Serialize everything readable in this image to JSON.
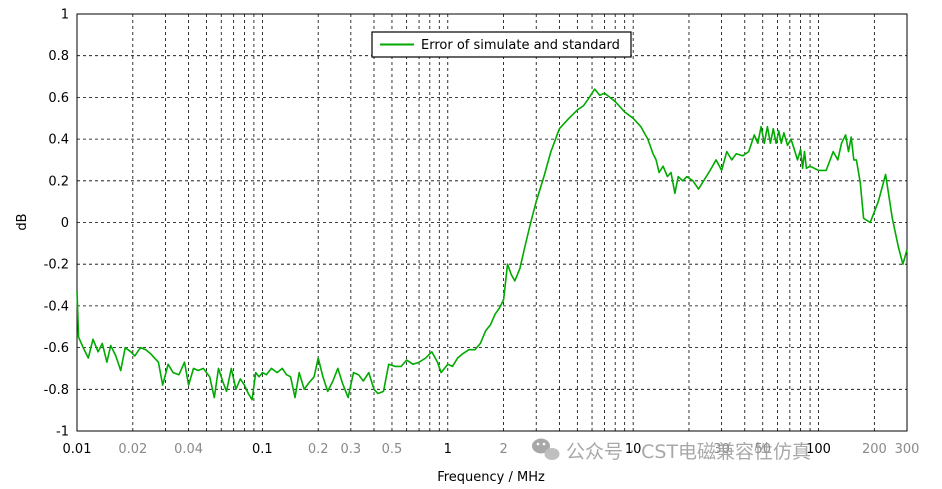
{
  "chart_data": {
    "type": "line",
    "xlabel": "Frequency / MHz",
    "ylabel": "dB",
    "x_scale": "log",
    "xlim": [
      0.01,
      300
    ],
    "ylim": [
      -1,
      1
    ],
    "grid": true,
    "legend_position": "top-center",
    "y_ticks": [
      "1",
      "0.8",
      "0.6",
      "0.4",
      "0.2",
      "0",
      "-0.2",
      "-0.4",
      "-0.6",
      "-0.8",
      "-1"
    ],
    "x_ticks": [
      {
        "value": 0.01,
        "label": "0.01",
        "major": true
      },
      {
        "value": 0.02,
        "label": "0.02",
        "major": false
      },
      {
        "value": 0.04,
        "label": "0.04",
        "major": false
      },
      {
        "value": 0.1,
        "label": "0.1",
        "major": true
      },
      {
        "value": 0.2,
        "label": "0.2",
        "major": false
      },
      {
        "value": 0.3,
        "label": "0.3",
        "major": false
      },
      {
        "value": 0.5,
        "label": "0.5",
        "major": false
      },
      {
        "value": 1,
        "label": "1",
        "major": true
      },
      {
        "value": 2,
        "label": "2",
        "major": false
      },
      {
        "value": 10,
        "label": "10",
        "major": true
      },
      {
        "value": 30,
        "label": "30",
        "major": false
      },
      {
        "value": 50,
        "label": "50",
        "major": false
      },
      {
        "value": 100,
        "label": "100",
        "major": true
      },
      {
        "value": 200,
        "label": "200",
        "major": false
      },
      {
        "value": 300,
        "label": "300",
        "major": false
      }
    ],
    "series": [
      {
        "name": "Error of simulate and standard",
        "color": "#00aa00",
        "points": [
          [
            0.01,
            -0.33
          ],
          [
            0.0102,
            -0.55
          ],
          [
            0.0108,
            -0.6
          ],
          [
            0.0115,
            -0.65
          ],
          [
            0.0122,
            -0.56
          ],
          [
            0.013,
            -0.62
          ],
          [
            0.0137,
            -0.58
          ],
          [
            0.0145,
            -0.67
          ],
          [
            0.0152,
            -0.59
          ],
          [
            0.0162,
            -0.64
          ],
          [
            0.0172,
            -0.71
          ],
          [
            0.0182,
            -0.6
          ],
          [
            0.0195,
            -0.62
          ],
          [
            0.0205,
            -0.64
          ],
          [
            0.022,
            -0.6
          ],
          [
            0.0235,
            -0.61
          ],
          [
            0.025,
            -0.63
          ],
          [
            0.0275,
            -0.67
          ],
          [
            0.029,
            -0.78
          ],
          [
            0.031,
            -0.68
          ],
          [
            0.033,
            -0.72
          ],
          [
            0.0355,
            -0.73
          ],
          [
            0.038,
            -0.67
          ],
          [
            0.04,
            -0.78
          ],
          [
            0.0425,
            -0.7
          ],
          [
            0.045,
            -0.71
          ],
          [
            0.048,
            -0.7
          ],
          [
            0.052,
            -0.74
          ],
          [
            0.055,
            -0.84
          ],
          [
            0.058,
            -0.7
          ],
          [
            0.061,
            -0.76
          ],
          [
            0.064,
            -0.81
          ],
          [
            0.068,
            -0.7
          ],
          [
            0.072,
            -0.8
          ],
          [
            0.076,
            -0.75
          ],
          [
            0.08,
            -0.78
          ],
          [
            0.084,
            -0.82
          ],
          [
            0.088,
            -0.85
          ],
          [
            0.092,
            -0.72
          ],
          [
            0.096,
            -0.74
          ],
          [
            0.1,
            -0.72
          ],
          [
            0.105,
            -0.73
          ],
          [
            0.112,
            -0.7
          ],
          [
            0.12,
            -0.72
          ],
          [
            0.128,
            -0.7
          ],
          [
            0.135,
            -0.73
          ],
          [
            0.142,
            -0.74
          ],
          [
            0.15,
            -0.84
          ],
          [
            0.158,
            -0.72
          ],
          [
            0.168,
            -0.8
          ],
          [
            0.178,
            -0.77
          ],
          [
            0.19,
            -0.74
          ],
          [
            0.2,
            -0.65
          ],
          [
            0.212,
            -0.74
          ],
          [
            0.225,
            -0.81
          ],
          [
            0.24,
            -0.76
          ],
          [
            0.255,
            -0.7
          ],
          [
            0.27,
            -0.77
          ],
          [
            0.29,
            -0.84
          ],
          [
            0.31,
            -0.72
          ],
          [
            0.33,
            -0.73
          ],
          [
            0.35,
            -0.76
          ],
          [
            0.375,
            -0.72
          ],
          [
            0.4,
            -0.8
          ],
          [
            0.42,
            -0.82
          ],
          [
            0.45,
            -0.81
          ],
          [
            0.48,
            -0.68
          ],
          [
            0.52,
            -0.69
          ],
          [
            0.56,
            -0.69
          ],
          [
            0.6,
            -0.66
          ],
          [
            0.65,
            -0.68
          ],
          [
            0.7,
            -0.67
          ],
          [
            0.76,
            -0.65
          ],
          [
            0.82,
            -0.62
          ],
          [
            0.88,
            -0.67
          ],
          [
            0.92,
            -0.72
          ],
          [
            0.96,
            -0.7
          ],
          [
            1.0,
            -0.68
          ],
          [
            1.06,
            -0.69
          ],
          [
            1.13,
            -0.65
          ],
          [
            1.2,
            -0.63
          ],
          [
            1.3,
            -0.61
          ],
          [
            1.4,
            -0.61
          ],
          [
            1.5,
            -0.58
          ],
          [
            1.6,
            -0.52
          ],
          [
            1.7,
            -0.49
          ],
          [
            1.8,
            -0.44
          ],
          [
            1.9,
            -0.41
          ],
          [
            2.0,
            -0.37
          ],
          [
            2.1,
            -0.2
          ],
          [
            2.2,
            -0.25
          ],
          [
            2.3,
            -0.28
          ],
          [
            2.45,
            -0.22
          ],
          [
            2.6,
            -0.12
          ],
          [
            2.8,
            0.0
          ],
          [
            3.0,
            0.1
          ],
          [
            3.3,
            0.22
          ],
          [
            3.6,
            0.34
          ],
          [
            4.0,
            0.45
          ],
          [
            4.5,
            0.5
          ],
          [
            5.0,
            0.54
          ],
          [
            5.4,
            0.56
          ],
          [
            5.8,
            0.6
          ],
          [
            6.2,
            0.64
          ],
          [
            6.6,
            0.61
          ],
          [
            7.0,
            0.62
          ],
          [
            7.5,
            0.6
          ],
          [
            8.0,
            0.58
          ],
          [
            9.0,
            0.53
          ],
          [
            10.0,
            0.5
          ],
          [
            11.0,
            0.46
          ],
          [
            12.0,
            0.4
          ],
          [
            12.8,
            0.33
          ],
          [
            13.3,
            0.3
          ],
          [
            13.8,
            0.24
          ],
          [
            14.5,
            0.27
          ],
          [
            15.3,
            0.22
          ],
          [
            16.0,
            0.24
          ],
          [
            16.8,
            0.14
          ],
          [
            17.5,
            0.22
          ],
          [
            18.5,
            0.2
          ],
          [
            19.5,
            0.22
          ],
          [
            21.0,
            0.2
          ],
          [
            22.5,
            0.16
          ],
          [
            24.0,
            0.2
          ],
          [
            26.0,
            0.25
          ],
          [
            28.0,
            0.3
          ],
          [
            30.0,
            0.25
          ],
          [
            32.0,
            0.34
          ],
          [
            34.0,
            0.3
          ],
          [
            36.0,
            0.33
          ],
          [
            39.0,
            0.32
          ],
          [
            42.0,
            0.34
          ],
          [
            45.0,
            0.42
          ],
          [
            47.0,
            0.38
          ],
          [
            49.0,
            0.46
          ],
          [
            51.0,
            0.38
          ],
          [
            53.0,
            0.46
          ],
          [
            55.0,
            0.38
          ],
          [
            57.0,
            0.45
          ],
          [
            59.0,
            0.38
          ],
          [
            61.0,
            0.44
          ],
          [
            63.0,
            0.38
          ],
          [
            65.0,
            0.43
          ],
          [
            68.0,
            0.37
          ],
          [
            71.0,
            0.4
          ],
          [
            74.0,
            0.35
          ],
          [
            77.0,
            0.3
          ],
          [
            80.0,
            0.35
          ],
          [
            82.0,
            0.26
          ],
          [
            84.0,
            0.34
          ],
          [
            86.0,
            0.26
          ],
          [
            90.0,
            0.27
          ],
          [
            100.0,
            0.25
          ],
          [
            110.0,
            0.25
          ],
          [
            120.0,
            0.34
          ],
          [
            127.0,
            0.3
          ],
          [
            133.0,
            0.38
          ],
          [
            140.0,
            0.42
          ],
          [
            145.0,
            0.34
          ],
          [
            150.0,
            0.41
          ],
          [
            155.0,
            0.3
          ],
          [
            160.0,
            0.3
          ],
          [
            168.0,
            0.19
          ],
          [
            175.0,
            0.02
          ],
          [
            190.0,
            0.0
          ],
          [
            210.0,
            0.1
          ],
          [
            230.0,
            0.23
          ],
          [
            250.0,
            0.02
          ],
          [
            270.0,
            -0.12
          ],
          [
            285.0,
            -0.2
          ],
          [
            300.0,
            -0.13
          ]
        ]
      }
    ]
  },
  "watermark": {
    "text": "公众号 · CST电磁兼容性仿真"
  }
}
